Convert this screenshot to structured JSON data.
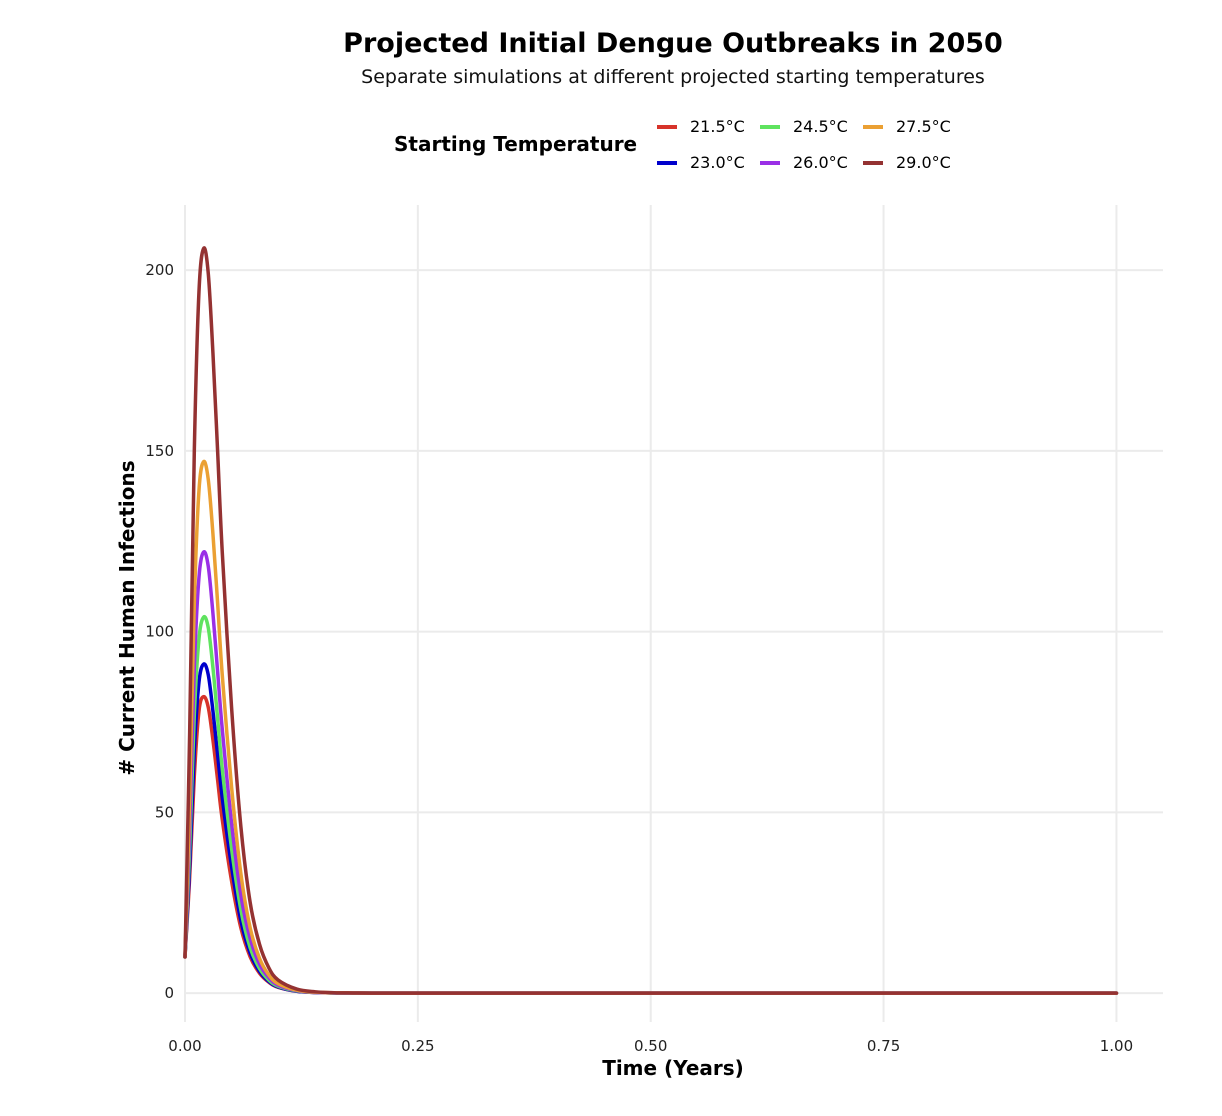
{
  "chart_data": {
    "type": "line",
    "title": "Projected Initial Dengue Outbreaks in 2050",
    "subtitle": "Separate simulations at different projected starting temperatures",
    "xlabel": "Time (Years)",
    "ylabel": "# Current Human Infections",
    "xlim": [
      0,
      1.05
    ],
    "ylim": [
      -8,
      218
    ],
    "x_ticks": [
      {
        "value": 0,
        "label": "0.00"
      },
      {
        "value": 0.25,
        "label": "0.25"
      },
      {
        "value": 0.5,
        "label": "0.50"
      },
      {
        "value": 0.75,
        "label": "0.75"
      },
      {
        "value": 1,
        "label": "1.00"
      }
    ],
    "y_ticks": [
      {
        "value": 0,
        "label": "0"
      },
      {
        "value": 50,
        "label": "50"
      },
      {
        "value": 100,
        "label": "100"
      },
      {
        "value": 150,
        "label": "150"
      },
      {
        "value": 200,
        "label": "200"
      }
    ],
    "grid": true,
    "legend": {
      "title": "Starting Temperature",
      "position": "top"
    },
    "x": [
      0,
      0.005,
      0.01,
      0.015,
      0.02,
      0.025,
      0.03,
      0.035,
      0.04,
      0.05,
      0.06,
      0.07,
      0.08,
      0.09,
      0.1,
      0.12,
      0.14,
      0.16,
      0.18,
      0.2,
      0.25,
      0.3,
      0.4,
      0.5,
      0.6,
      0.7,
      0.8,
      0.9,
      1.0
    ],
    "series": [
      {
        "name": "21.5°C",
        "color": "#d7332a",
        "values": [
          10,
          32,
          60,
          78,
          82,
          79,
          70,
          59,
          48,
          31,
          18,
          10,
          5.5,
          3,
          1.6,
          0.5,
          0.15,
          0.05,
          0.02,
          0,
          0,
          0,
          0,
          0,
          0,
          0,
          0,
          0,
          0
        ]
      },
      {
        "name": "23.0°C",
        "color": "#0000cc",
        "values": [
          10,
          35,
          67,
          86,
          91,
          88,
          78,
          66,
          54,
          35,
          20,
          11,
          6,
          3.2,
          1.7,
          0.5,
          0.15,
          0.05,
          0.02,
          0,
          0,
          0,
          0,
          0,
          0,
          0,
          0,
          0,
          0
        ]
      },
      {
        "name": "24.5°C",
        "color": "#5fe35f",
        "values": [
          10,
          40,
          77,
          98,
          104,
          101,
          90,
          76,
          62,
          40,
          23,
          12.5,
          6.8,
          3.6,
          1.9,
          0.6,
          0.18,
          0.06,
          0.02,
          0,
          0,
          0,
          0,
          0,
          0,
          0,
          0,
          0,
          0
        ]
      },
      {
        "name": "26.0°C",
        "color": "#9a2fe6",
        "values": [
          10,
          46,
          90,
          115,
          122,
          118,
          105,
          89,
          73,
          47,
          27,
          15,
          8,
          4.3,
          2.2,
          0.7,
          0.2,
          0.07,
          0.02,
          0,
          0,
          0,
          0,
          0,
          0,
          0,
          0,
          0,
          0
        ]
      },
      {
        "name": "27.5°C",
        "color": "#eba033",
        "values": [
          10,
          54,
          108,
          139,
          147,
          142,
          127,
          108,
          88,
          57,
          33,
          18,
          9.6,
          5,
          2.6,
          0.8,
          0.25,
          0.08,
          0.03,
          0,
          0,
          0,
          0,
          0,
          0,
          0,
          0,
          0,
          0
        ]
      },
      {
        "name": "29.0°C",
        "color": "#943232",
        "values": [
          10,
          72,
          150,
          194,
          206,
          199,
          177,
          150,
          122,
          79,
          46,
          25,
          13.5,
          7,
          3.6,
          1.1,
          0.35,
          0.1,
          0.03,
          0,
          0,
          0,
          0,
          0,
          0,
          0,
          0,
          0,
          0
        ]
      }
    ]
  }
}
